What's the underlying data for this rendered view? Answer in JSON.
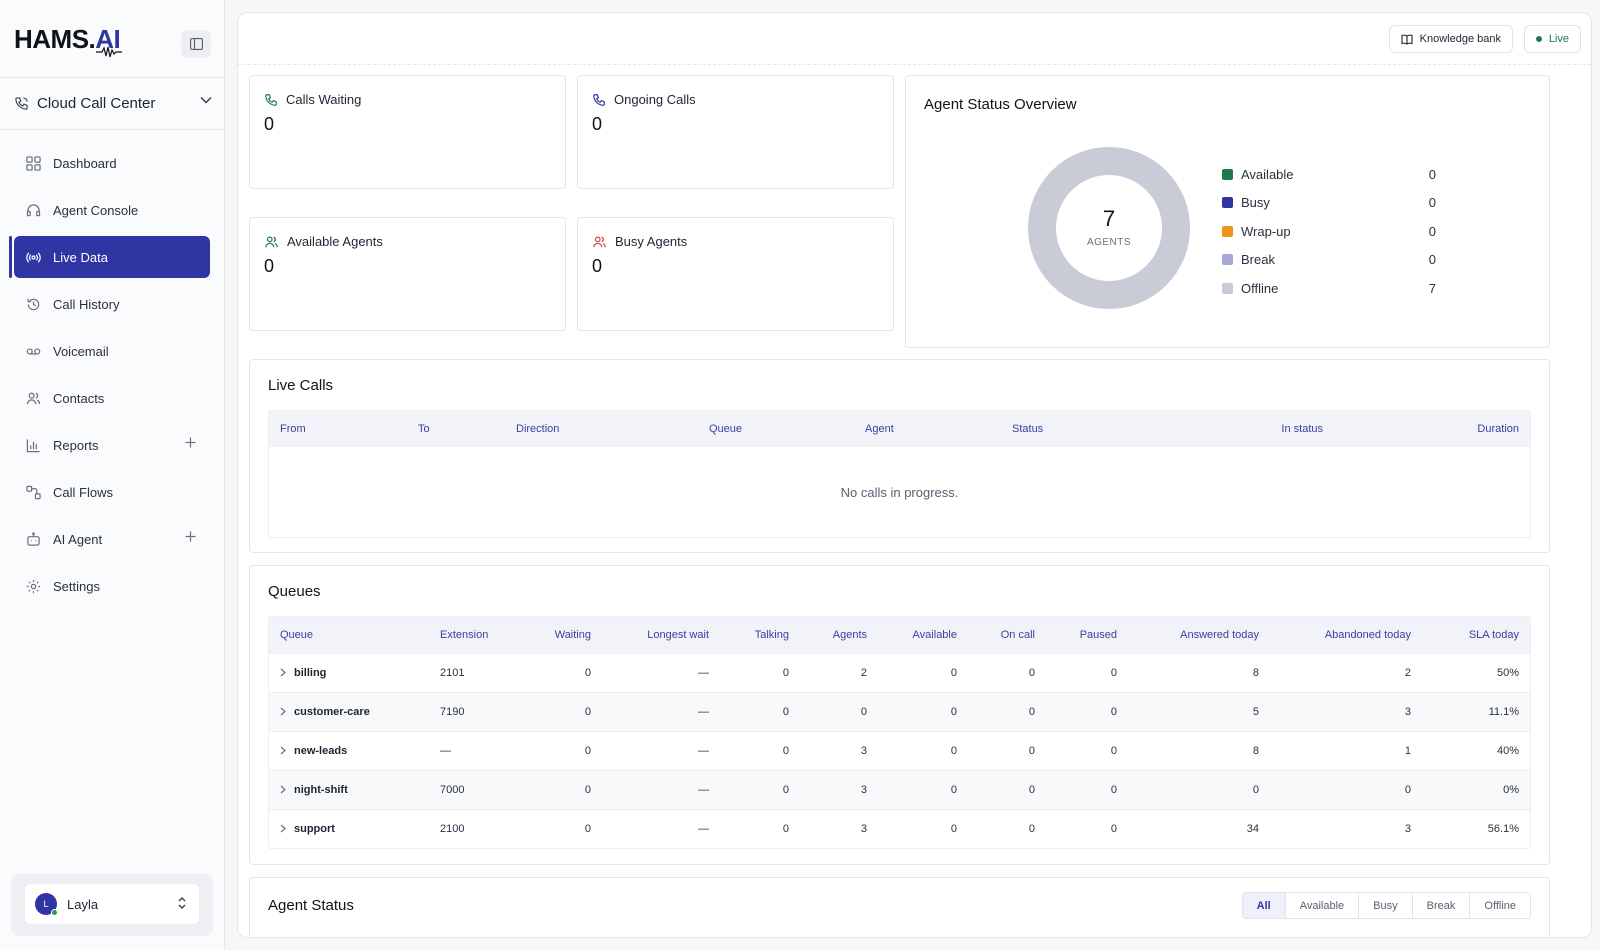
{
  "brand": {
    "logo_main": "HAMS.",
    "logo_accent": "AI"
  },
  "workspace": {
    "label": "Cloud Call Center"
  },
  "sidebar": {
    "items": [
      {
        "label": "Dashboard",
        "icon": "grid-icon"
      },
      {
        "label": "Agent Console",
        "icon": "headset-icon"
      },
      {
        "label": "Live Data",
        "icon": "broadcast-icon",
        "active": true
      },
      {
        "label": "Call History",
        "icon": "history-icon"
      },
      {
        "label": "Voicemail",
        "icon": "voicemail-icon"
      },
      {
        "label": "Contacts",
        "icon": "users-icon"
      },
      {
        "label": "Reports",
        "icon": "bar-chart-icon",
        "expandable": true
      },
      {
        "label": "Call Flows",
        "icon": "flow-icon"
      },
      {
        "label": "AI Agent",
        "icon": "robot-icon",
        "expandable": true
      },
      {
        "label": "Settings",
        "icon": "gear-icon"
      }
    ]
  },
  "user": {
    "initial": "L",
    "name": "Layla"
  },
  "topbar": {
    "knowledge_label": "Knowledge bank",
    "live_label": "Live"
  },
  "stats": {
    "calls_waiting": {
      "label": "Calls Waiting",
      "value": "0"
    },
    "ongoing_calls": {
      "label": "Ongoing Calls",
      "value": "0"
    },
    "available_agents": {
      "label": "Available Agents",
      "value": "0"
    },
    "busy_agents": {
      "label": "Busy Agents",
      "value": "0"
    }
  },
  "agent_overview": {
    "title": "Agent Status Overview",
    "total": "7",
    "total_label": "AGENTS",
    "legend": [
      {
        "label": "Available",
        "value": "0",
        "color": "#1e7a4c"
      },
      {
        "label": "Busy",
        "value": "0",
        "color": "#2f35a3"
      },
      {
        "label": "Wrap-up",
        "value": "0",
        "color": "#f0931e"
      },
      {
        "label": "Break",
        "value": "0",
        "color": "#a8a8d8"
      },
      {
        "label": "Offline",
        "value": "7",
        "color": "#c9ccd6"
      }
    ]
  },
  "live_calls": {
    "title": "Live Calls",
    "columns": [
      "From",
      "To",
      "Direction",
      "Queue",
      "Agent",
      "Status",
      "In status",
      "Duration"
    ],
    "empty_text": "No calls in progress."
  },
  "queues": {
    "title": "Queues",
    "columns": [
      "Queue",
      "Extension",
      "Waiting",
      "Longest wait",
      "Talking",
      "Agents",
      "Available",
      "On call",
      "Paused",
      "Answered today",
      "Abandoned today",
      "SLA today"
    ],
    "rows": [
      [
        "billing",
        "2101",
        "0",
        "—",
        "0",
        "2",
        "0",
        "0",
        "0",
        "8",
        "2",
        "50%"
      ],
      [
        "customer-care",
        "7190",
        "0",
        "—",
        "0",
        "0",
        "0",
        "0",
        "0",
        "5",
        "3",
        "11.1%"
      ],
      [
        "new-leads",
        "—",
        "0",
        "—",
        "0",
        "3",
        "0",
        "0",
        "0",
        "8",
        "1",
        "40%"
      ],
      [
        "night-shift",
        "7000",
        "0",
        "—",
        "0",
        "3",
        "0",
        "0",
        "0",
        "0",
        "0",
        "0%"
      ],
      [
        "support",
        "2100",
        "0",
        "—",
        "0",
        "3",
        "0",
        "0",
        "0",
        "34",
        "3",
        "56.1%"
      ]
    ]
  },
  "agent_status": {
    "title": "Agent Status",
    "filters": [
      "All",
      "Available",
      "Busy",
      "Break",
      "Offline"
    ],
    "active_filter": "All"
  }
}
